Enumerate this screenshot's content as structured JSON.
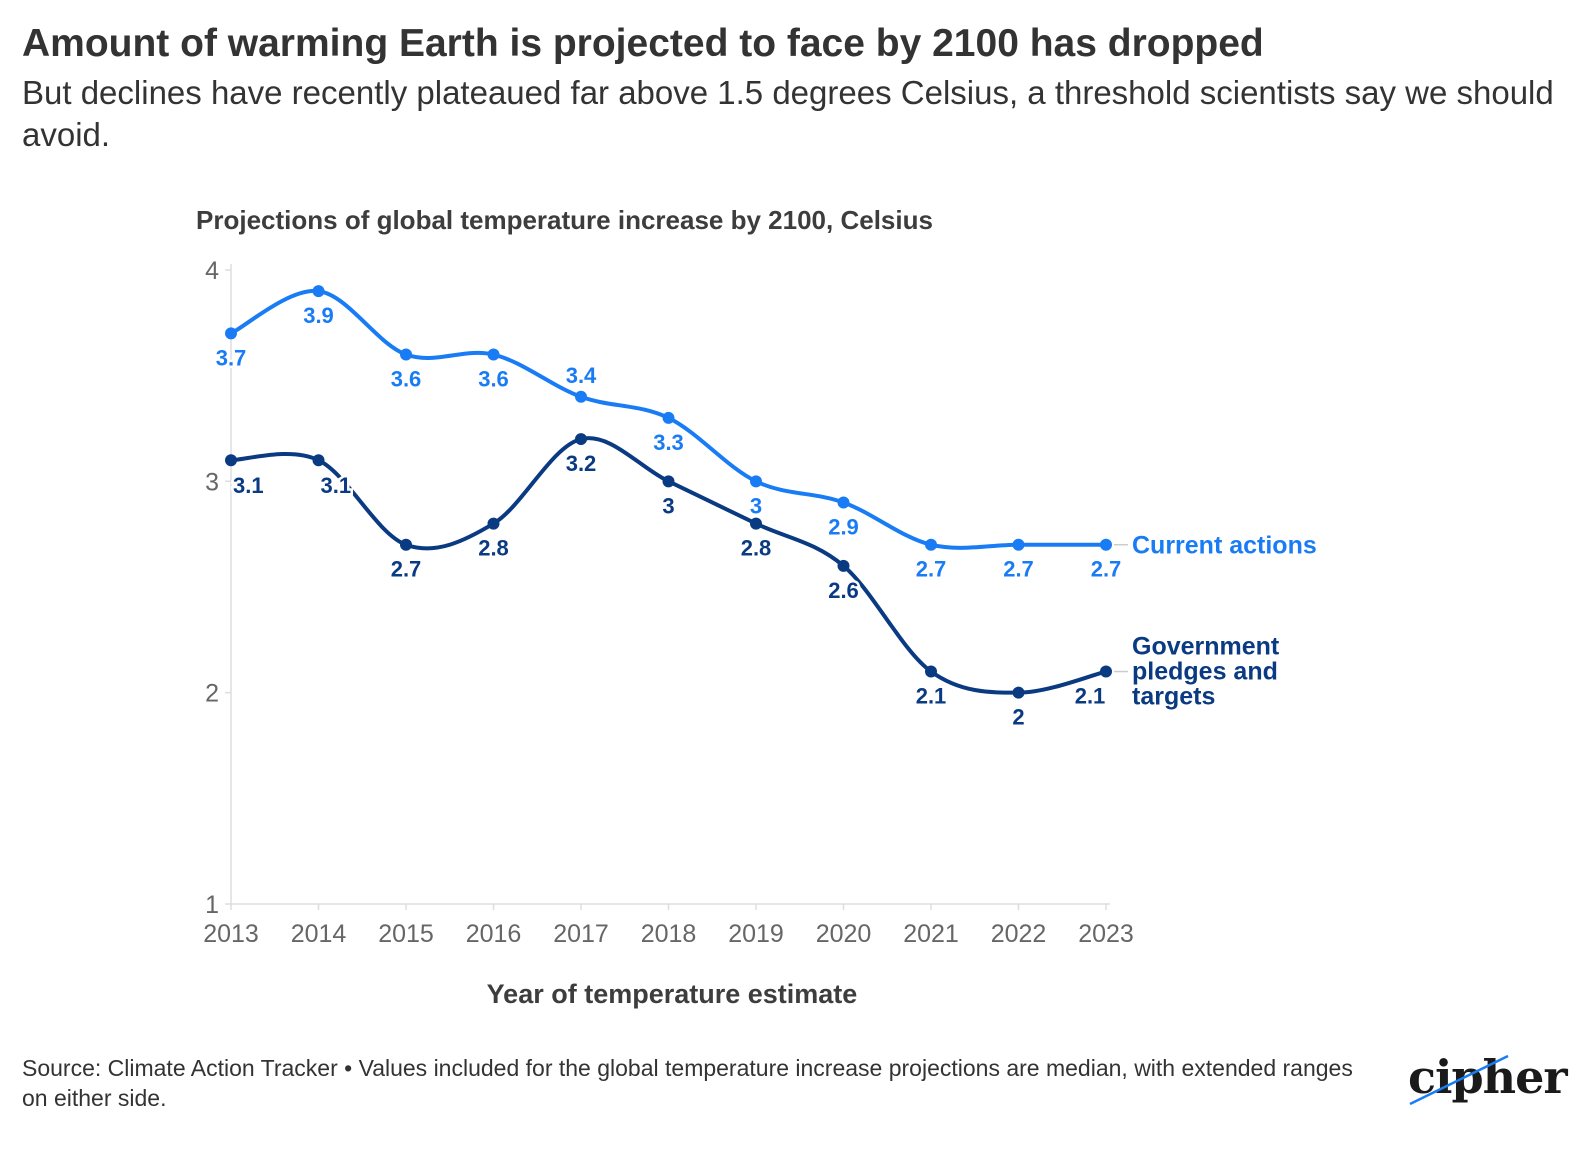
{
  "header": {
    "title": "Amount of warming Earth is projected to face by 2100 has dropped",
    "subtitle": "But declines have recently plateaued far above 1.5 degrees Celsius, a threshold scientists say we should avoid."
  },
  "footer": {
    "source": "Source: Climate Action Tracker • Values included for the global temperature increase projections are median, with extended ranges on either side.",
    "logo_text": "cipher"
  },
  "colors": {
    "current_actions": "#1a7cf5",
    "pledges_targets": "#0a3a82",
    "axis_text": "#666666",
    "grid_axis": "#dddddd"
  },
  "chart_data": {
    "type": "line",
    "title": "Projections of global temperature increase by 2100, Celsius",
    "xlabel": "Year of temperature estimate",
    "ylabel": "",
    "x": [
      2013,
      2014,
      2015,
      2016,
      2017,
      2018,
      2019,
      2020,
      2021,
      2022,
      2023
    ],
    "ylim": [
      1,
      4
    ],
    "yticks": [
      1,
      2,
      3,
      4
    ],
    "grid": false,
    "legend": "direct labels at line ends",
    "series": [
      {
        "name": "Current actions",
        "color": "#1a7cf5",
        "values": [
          3.7,
          3.9,
          3.6,
          3.6,
          3.4,
          3.3,
          3.0,
          2.9,
          2.7,
          2.7,
          2.7
        ],
        "labels": [
          "3.7",
          "3.9",
          "3.6",
          "3.6",
          "3.4",
          "3.3",
          "3",
          "2.9",
          "2.7",
          "2.7",
          "2.7"
        ]
      },
      {
        "name": "Government pledges and targets",
        "name_lines": [
          "Government",
          "pledges and",
          "targets"
        ],
        "color": "#0a3a82",
        "values": [
          3.1,
          3.1,
          2.7,
          2.8,
          3.2,
          3.0,
          2.8,
          2.6,
          2.1,
          2.0,
          2.1
        ],
        "labels": [
          "3.1",
          "3.1",
          "2.7",
          "2.8",
          "3.2",
          "3",
          "2.8",
          "2.6",
          "2.1",
          "2",
          "2.1"
        ]
      }
    ]
  }
}
